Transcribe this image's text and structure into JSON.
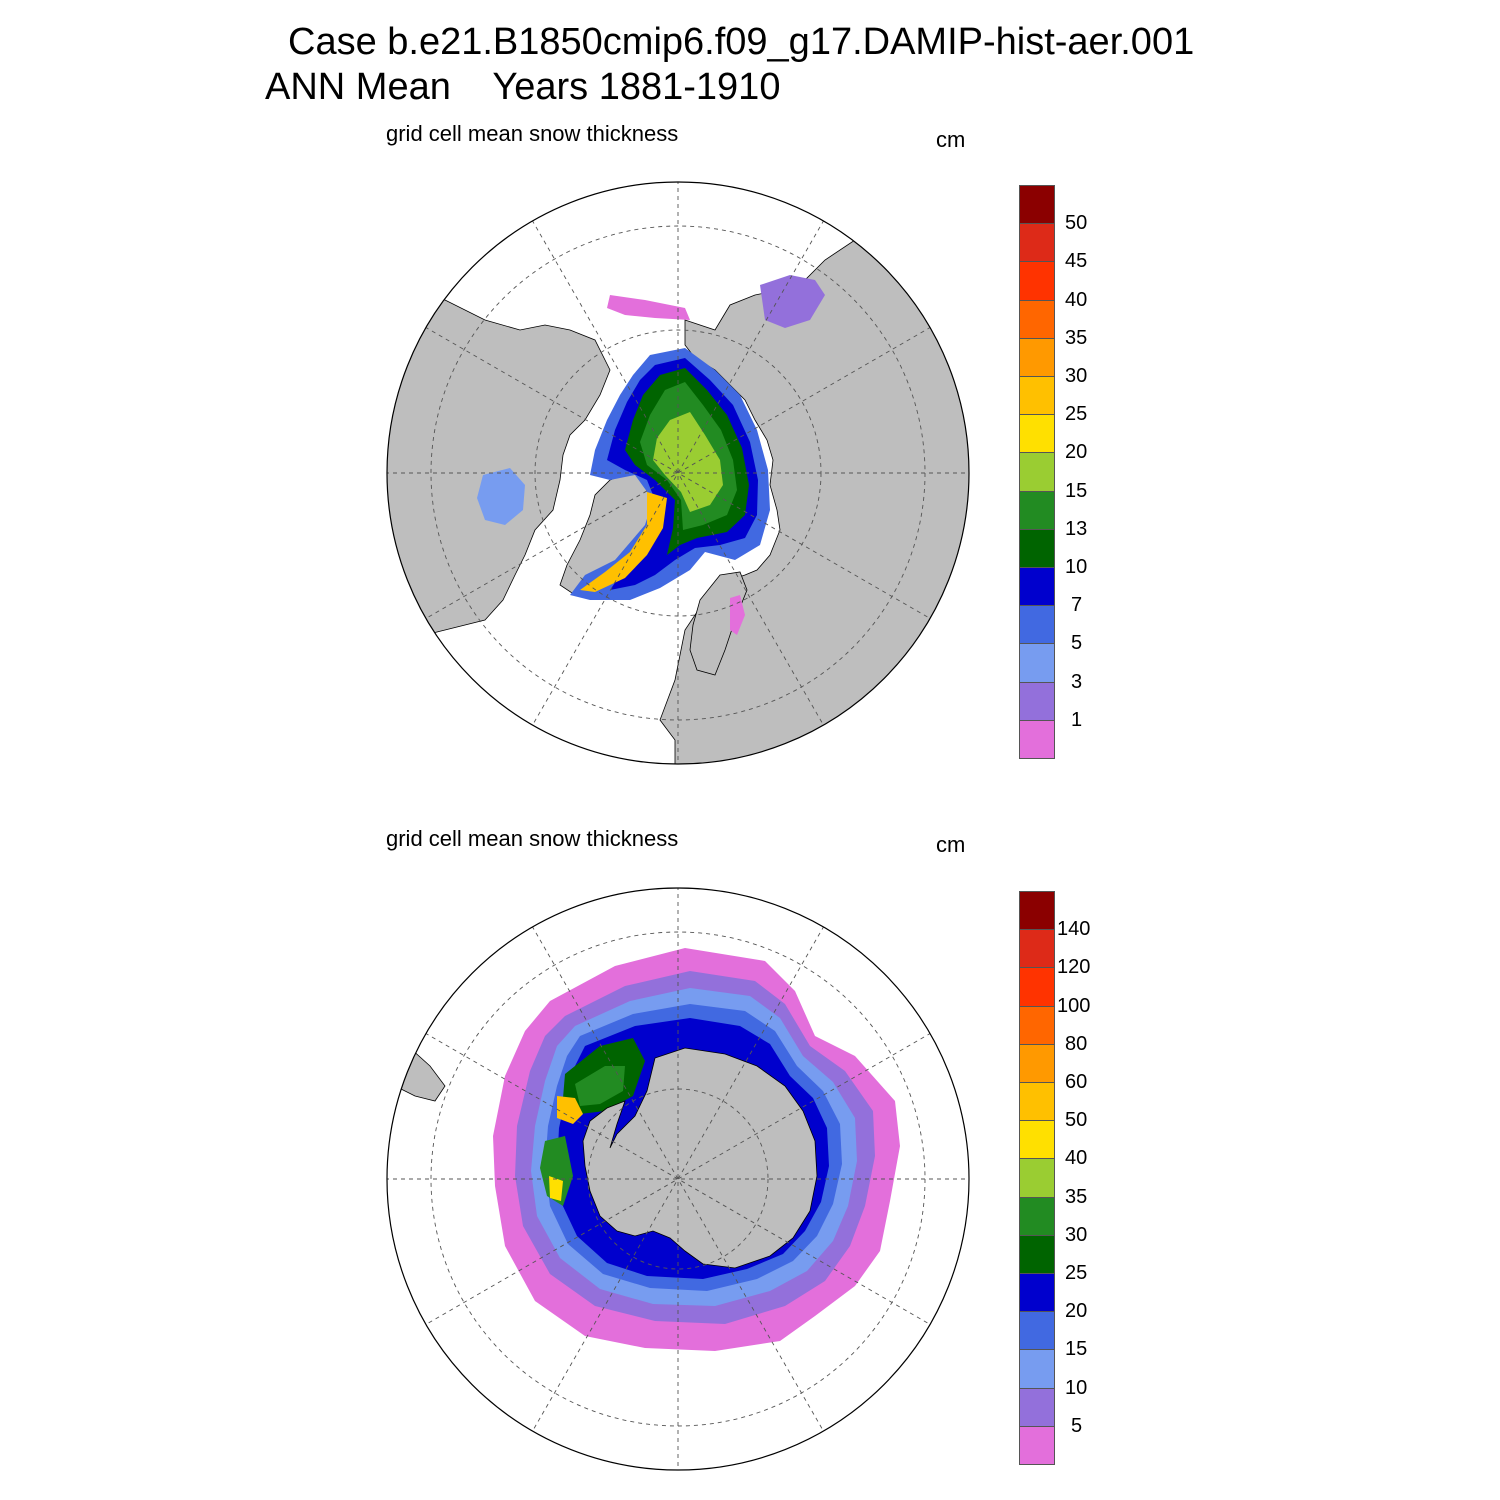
{
  "title_line1": "Case b.e21.B1850cmip6.f09_g17.DAMIP-hist-aer.001",
  "title_line2": "ANN Mean    Years 1881-1910",
  "colors": {
    "land": "#bebebe",
    "ocean": "#ffffff",
    "grid": "#555555",
    "levels": [
      "#e36fdb",
      "#9370db",
      "#779cf0",
      "#4169e1",
      "#0000cd",
      "#006400",
      "#228b22",
      "#9acd32",
      "#ffe000",
      "#ffc000",
      "#ff9900",
      "#ff6600",
      "#ff3300",
      "#dd2a18",
      "#8b0000"
    ]
  },
  "panels": [
    {
      "name": "north",
      "title": "grid cell mean snow thickness",
      "units": "cm",
      "hemisphere": "Northern",
      "colorbar_labels": [
        "1",
        "3",
        "5",
        "7",
        "10",
        "13",
        "15",
        "20",
        "25",
        "30",
        "35",
        "40",
        "45",
        "50"
      ]
    },
    {
      "name": "south",
      "title": "grid cell mean snow thickness",
      "units": "cm",
      "hemisphere": "Southern",
      "colorbar_labels": [
        "5",
        "10",
        "15",
        "20",
        "25",
        "30",
        "35",
        "40",
        "50",
        "60",
        "80",
        "100",
        "120",
        "140"
      ]
    }
  ]
}
